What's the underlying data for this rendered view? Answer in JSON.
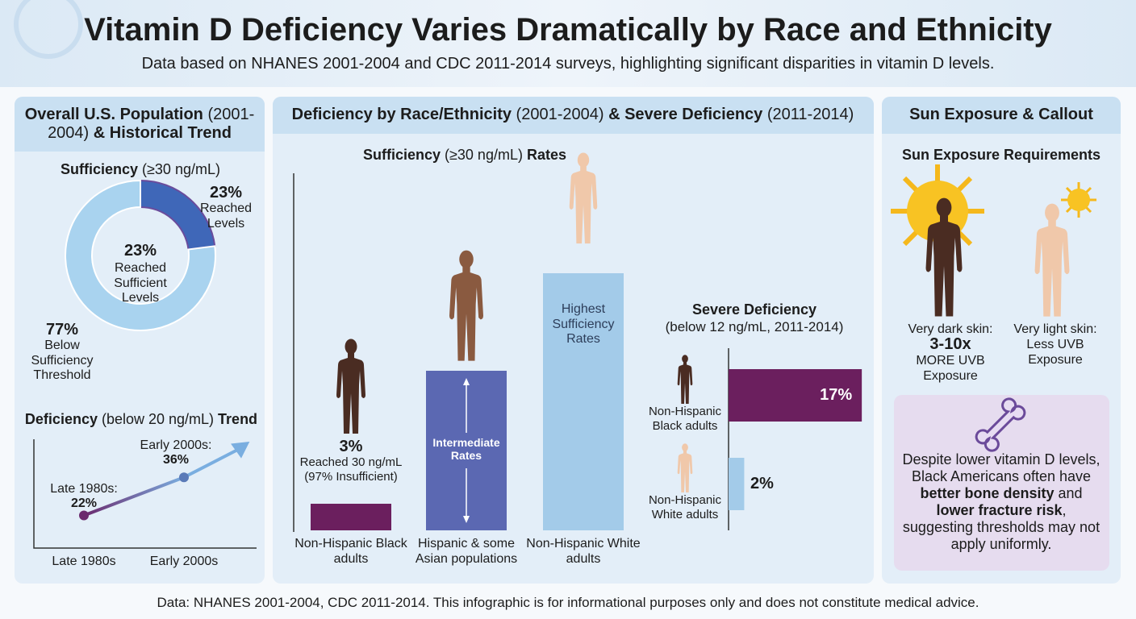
{
  "header": {
    "title": "Vitamin D Deficiency Varies Dramatically by Race and Ethnicity",
    "subtitle": "Data based on NHANES 2001-2004 and CDC 2011-2014 surveys, highlighting significant disparities in vitamin D levels."
  },
  "panels": [
    {
      "title": [
        {
          "text": "Overall U.S. Population ",
          "bold": true
        },
        {
          "text": "(2001-2004) "
        },
        {
          "text": "& Historical Trend",
          "bold": true
        }
      ]
    },
    {
      "title": [
        {
          "text": "Deficiency by Race/Ethnicity ",
          "bold": true
        },
        {
          "text": "(2001-2004) "
        },
        {
          "text": "& Severe Deficiency ",
          "bold": true
        },
        {
          "text": "(2011-2014)"
        }
      ]
    },
    {
      "title": [
        {
          "text": "Sun Exposure & Callout",
          "bold": true
        }
      ]
    }
  ],
  "chart_data": [
    {
      "type": "pie",
      "title": [
        {
          "text": "Sufficiency ",
          "bold": true
        },
        {
          "text": "(≥30 ng/mL)"
        }
      ],
      "categories": [
        "Reached Levels",
        "Below Sufficiency Threshold"
      ],
      "values": [
        23,
        77
      ],
      "value_labels": [
        "23%",
        "77%"
      ],
      "colors": [
        "#3f67b8",
        "#a9d3ef"
      ],
      "center_label": "Reached Sufficient Levels"
    },
    {
      "type": "line",
      "title": [
        {
          "text": "Deficiency ",
          "bold": true
        },
        {
          "text": "(below 20 ng/mL) "
        },
        {
          "text": "Trend",
          "bold": true
        }
      ],
      "categories": [
        "Late 1980s",
        "Early 2000s"
      ],
      "values": [
        22,
        36
      ],
      "value_labels": [
        "22%",
        "36%"
      ],
      "point_labels": [
        "Late 1980s:",
        "Early 2000s:"
      ],
      "point_colors": [
        "#6b2a6e",
        "#5a7ab8"
      ],
      "color": "#6f5aa8",
      "ylim": [
        10,
        50
      ]
    },
    {
      "type": "bar",
      "title": [
        {
          "text": "Sufficiency ",
          "bold": true
        },
        {
          "text": "(≥30 ng/mL) "
        },
        {
          "text": "Rates",
          "bold": true
        }
      ],
      "categories": [
        "Non-Hispanic Black adults",
        "Hispanic & some Asian populations",
        "Non-Hispanic White adults"
      ],
      "values": [
        3,
        18,
        29
      ],
      "value_labels": [
        "3%",
        null,
        null
      ],
      "bar_labels": [
        "Reached 30 ng/mL (97% Insufficient)",
        "Intermediate Rates",
        "Highest Sufficiency Rates"
      ],
      "colors": [
        "#6b1f5e",
        "#5b68b2",
        "#a3cbe9"
      ],
      "figure_colors": [
        "#4a2c22",
        "#8a5a40",
        "#f0c8aa"
      ],
      "ylim": [
        0,
        30
      ]
    },
    {
      "type": "bar",
      "orientation": "horizontal",
      "title": "Severe Deficiency",
      "subtitle": "(below 12 ng/mL, 2011-2014)",
      "categories": [
        "Non-Hispanic Black adults",
        "Non-Hispanic White adults"
      ],
      "values": [
        17,
        2
      ],
      "value_labels": [
        "17%",
        "2%"
      ],
      "colors": [
        "#6b1f5e",
        "#a3cbe9"
      ],
      "figure_colors": [
        "#4a2c22",
        "#f0c8aa"
      ],
      "xlim": [
        0,
        17.5
      ]
    }
  ],
  "sun_exposure": {
    "title": "Sun Exposure Requirements",
    "dark": {
      "label": "Very dark skin:",
      "factor": "3-10x",
      "note": "MORE UVB Exposure"
    },
    "light": {
      "label": "Very light skin:",
      "note": "Less UVB Exposure"
    }
  },
  "callout": [
    {
      "text": "Despite lower vitamin D levels, Black Americans often have "
    },
    {
      "text": "better bone density",
      "bold": true
    },
    {
      "text": " and "
    },
    {
      "text": "lower fracture risk",
      "bold": true
    },
    {
      "text": ", suggesting thresholds may not apply uniformly."
    }
  ],
  "footer": "Data: NHANES 2001-2004, CDC 2011-2014. This infographic is for informational purposes only and does not constitute medical advice."
}
